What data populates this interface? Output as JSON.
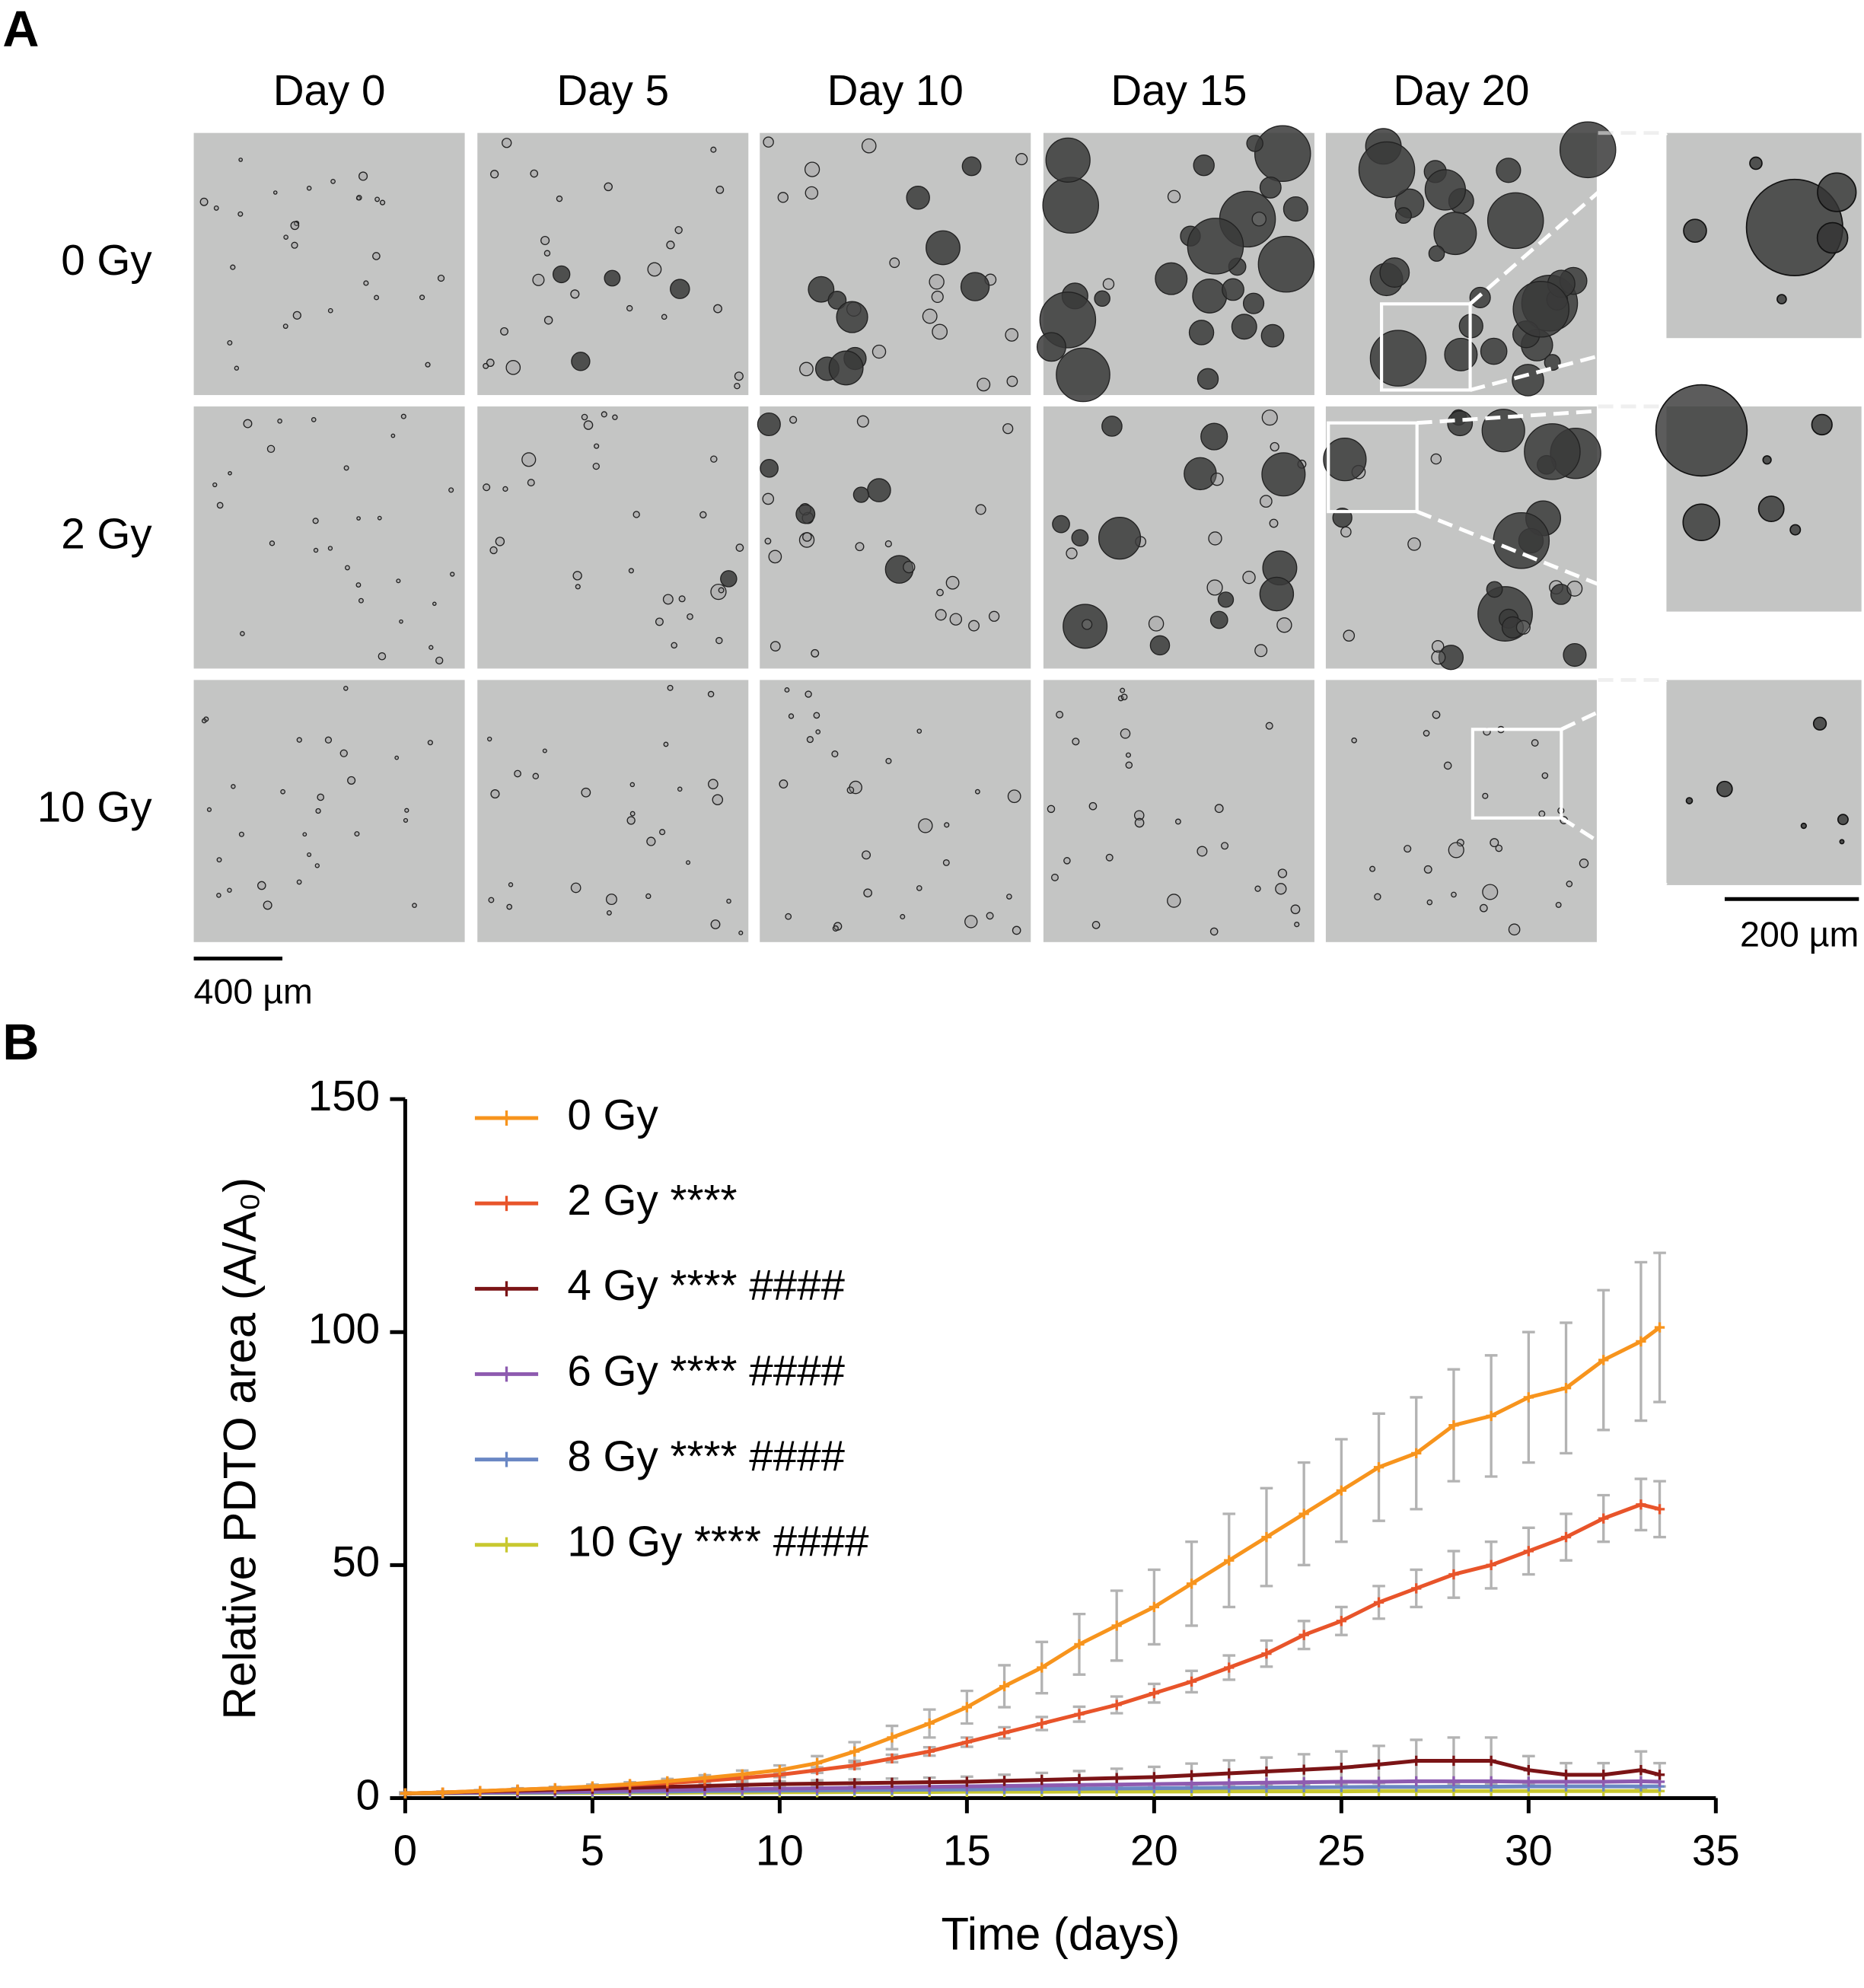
{
  "panel_labels": [
    "A",
    "B"
  ],
  "panel_a": {
    "columns": [
      "Day 0",
      "Day 5",
      "Day 10",
      "Day 15",
      "Day 20"
    ],
    "rows": [
      "0 Gy",
      "2 Gy",
      "10 Gy"
    ],
    "scale_bar": "400 µm",
    "inset_scale_bar": "200 µm"
  },
  "chart_data": {
    "type": "line",
    "xlabel": "Time (days)",
    "ylabel": "Relative PDTO area (A/A₀)",
    "x": [
      0,
      1,
      2,
      3,
      4,
      5,
      6,
      7,
      8,
      9,
      10,
      11,
      12,
      13,
      14,
      15,
      16,
      17,
      18,
      19,
      20,
      21,
      22,
      23,
      24,
      25,
      26,
      27,
      28,
      29,
      30,
      31,
      32,
      33,
      33.5
    ],
    "xlim": [
      0,
      35
    ],
    "xticks": [
      0,
      5,
      10,
      15,
      20,
      25,
      30,
      35
    ],
    "ylim": [
      0,
      150
    ],
    "yticks": [
      0,
      50,
      100,
      150
    ],
    "error_color": "#b3b3b3",
    "series": [
      {
        "name": "0 Gy",
        "color": "#f7941d",
        "values": [
          1,
          1.2,
          1.5,
          1.8,
          2.1,
          2.5,
          3,
          3.6,
          4.3,
          5.1,
          6,
          7.5,
          10,
          13,
          16,
          19.5,
          24,
          28,
          33,
          37,
          41,
          46,
          51,
          56,
          61,
          66,
          71,
          74,
          80,
          82,
          86,
          88,
          94,
          98,
          101
        ],
        "errors": [
          0.2,
          0.2,
          0.2,
          0.3,
          0.3,
          0.4,
          0.4,
          0.5,
          0.6,
          0.8,
          1,
          1.5,
          2,
          2.5,
          3,
          3.5,
          4.5,
          5.5,
          6.5,
          7.5,
          8,
          9,
          10,
          10.5,
          11,
          11,
          11.5,
          12,
          12,
          13,
          14,
          14,
          15,
          17,
          16
        ]
      },
      {
        "name": "2 Gy ****",
        "color": "#e8542a",
        "values": [
          1,
          1.2,
          1.5,
          1.8,
          2.1,
          2.4,
          2.8,
          3.2,
          3.7,
          4.3,
          5,
          6,
          7,
          8.5,
          10,
          12,
          14,
          16,
          18,
          20,
          22.5,
          25,
          28,
          31,
          35,
          38,
          42,
          45,
          48,
          50,
          53,
          56,
          60,
          63,
          62
        ],
        "errors": [
          0.2,
          0.2,
          0.2,
          0.2,
          0.3,
          0.3,
          0.3,
          0.4,
          0.4,
          0.5,
          0.5,
          0.6,
          0.7,
          0.8,
          0.9,
          1,
          1.2,
          1.4,
          1.6,
          1.8,
          2,
          2.3,
          2.6,
          2.8,
          3,
          3,
          3.5,
          4,
          5,
          5,
          5,
          5,
          5,
          5.5,
          6
        ]
      },
      {
        "name": "4 Gy **** ####",
        "color": "#7b1416",
        "values": [
          1,
          1.2,
          1.4,
          1.6,
          1.8,
          2,
          2.2,
          2.4,
          2.6,
          2.8,
          3,
          3.1,
          3.2,
          3.3,
          3.4,
          3.5,
          3.7,
          3.9,
          4.1,
          4.3,
          4.5,
          4.9,
          5.3,
          5.7,
          6.1,
          6.5,
          7.2,
          8,
          8,
          8,
          6,
          5,
          5,
          6,
          5
        ],
        "errors": [
          0.2,
          0.2,
          0.2,
          0.3,
          0.3,
          0.3,
          0.4,
          0.4,
          0.5,
          0.5,
          0.6,
          0.7,
          0.8,
          0.9,
          1,
          1.1,
          1.3,
          1.5,
          1.7,
          2,
          2.2,
          2.5,
          2.8,
          3,
          3.3,
          3.5,
          4,
          4.5,
          5,
          5,
          3,
          2.5,
          2.5,
          4,
          2.5
        ]
      },
      {
        "name": "6 Gy **** ####",
        "color": "#8e5bb0",
        "values": [
          1,
          1.1,
          1.2,
          1.3,
          1.4,
          1.5,
          1.6,
          1.7,
          1.8,
          1.9,
          2,
          2.1,
          2.2,
          2.3,
          2.4,
          2.5,
          2.6,
          2.7,
          2.8,
          2.9,
          3,
          3.1,
          3.2,
          3.3,
          3.4,
          3.5,
          3.5,
          3.6,
          3.6,
          3.6,
          3.5,
          3.5,
          3.5,
          3.6,
          3.5
        ]
      },
      {
        "name": "8 Gy **** ####",
        "color": "#6a87c4",
        "values": [
          1,
          1.05,
          1.1,
          1.15,
          1.2,
          1.3,
          1.35,
          1.4,
          1.5,
          1.55,
          1.6,
          1.65,
          1.7,
          1.75,
          1.8,
          1.85,
          1.9,
          1.95,
          2,
          2.05,
          2.1,
          2.15,
          2.2,
          2.25,
          2.3,
          2.35,
          2.4,
          2.4,
          2.45,
          2.45,
          2.5,
          2.5,
          2.5,
          2.5,
          2.5
        ]
      },
      {
        "name": "10 Gy **** ####",
        "color": "#c8c830",
        "values": [
          1,
          1,
          1.05,
          1.05,
          1.1,
          1.1,
          1.15,
          1.15,
          1.2,
          1.2,
          1.25,
          1.25,
          1.3,
          1.3,
          1.3,
          1.35,
          1.35,
          1.35,
          1.4,
          1.4,
          1.4,
          1.4,
          1.45,
          1.45,
          1.45,
          1.45,
          1.5,
          1.5,
          1.5,
          1.5,
          1.5,
          1.5,
          1.5,
          1.5,
          1.5
        ]
      }
    ]
  }
}
